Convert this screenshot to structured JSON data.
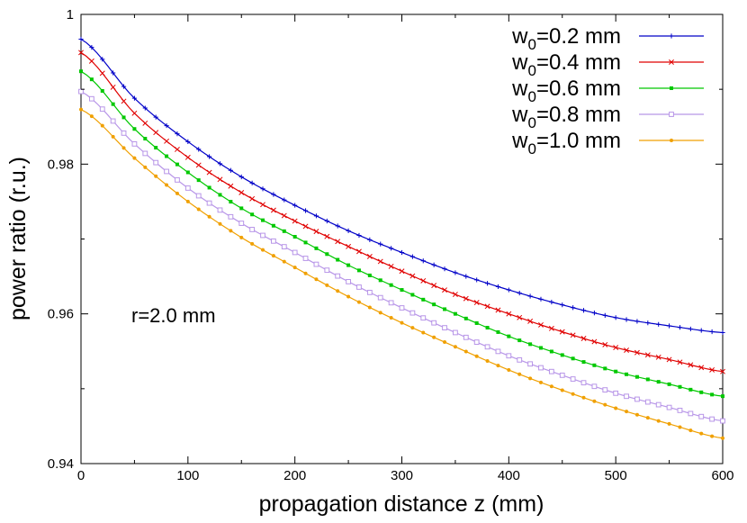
{
  "chart_data": {
    "type": "line",
    "title": "",
    "xlabel": "propagation distance z (mm)",
    "ylabel": "power ratio (r.u.)",
    "xlim": [
      0,
      600
    ],
    "ylim": [
      0.94,
      1.0
    ],
    "xticks": [
      0,
      100,
      200,
      300,
      400,
      500,
      600
    ],
    "xtick_labels": [
      "0",
      "100",
      "200",
      "300",
      "400",
      "500",
      "600"
    ],
    "yticks": [
      0.94,
      0.96,
      0.98,
      1.0
    ],
    "ytick_labels": [
      "0.94",
      "0.96",
      "0.98",
      "1"
    ],
    "grid": false,
    "legend_position": "top-right",
    "annotation": "r=2.0 mm",
    "x": [
      0,
      50,
      100,
      150,
      200,
      250,
      300,
      350,
      400,
      450,
      500,
      550,
      600
    ],
    "series": [
      {
        "name": "w0=0.2 mm",
        "legend_base": "w",
        "legend_sub": "0",
        "legend_rest": "=0.2 mm",
        "color": "#0000c8",
        "marker": "plus",
        "values": [
          0.9967,
          0.9888,
          0.983,
          0.9783,
          0.9745,
          0.9711,
          0.9682,
          0.9655,
          0.9632,
          0.9612,
          0.9595,
          0.9584,
          0.9575
        ]
      },
      {
        "name": "w0=0.4 mm",
        "legend_base": "w",
        "legend_sub": "0",
        "legend_rest": "=0.4 mm",
        "color": "#e00000",
        "marker": "cross",
        "values": [
          0.9949,
          0.9868,
          0.9809,
          0.9762,
          0.9724,
          0.969,
          0.9657,
          0.9626,
          0.96,
          0.9576,
          0.9555,
          0.9539,
          0.9523
        ]
      },
      {
        "name": "w0=0.6 mm",
        "legend_base": "w",
        "legend_sub": "0",
        "legend_rest": "=0.6 mm",
        "color": "#00c800",
        "marker": "square",
        "values": [
          0.9924,
          0.9847,
          0.9789,
          0.9741,
          0.9703,
          0.9665,
          0.9632,
          0.96,
          0.957,
          0.9545,
          0.9523,
          0.9506,
          0.949
        ]
      },
      {
        "name": "w0=0.8 mm",
        "legend_base": "w",
        "legend_sub": "0",
        "legend_rest": "=0.8 mm",
        "color": "#b896e8",
        "marker": "square-open",
        "values": [
          0.9897,
          0.9827,
          0.9768,
          0.9721,
          0.9682,
          0.9643,
          0.9608,
          0.9575,
          0.9544,
          0.9518,
          0.9494,
          0.9475,
          0.9457
        ]
      },
      {
        "name": "w0=1.0 mm",
        "legend_base": "w",
        "legend_sub": "0",
        "legend_rest": "=1.0 mm",
        "color": "#f0a000",
        "marker": "dot",
        "values": [
          0.9873,
          0.9808,
          0.975,
          0.9702,
          0.9662,
          0.9623,
          0.9588,
          0.9556,
          0.9525,
          0.9498,
          0.9474,
          0.9453,
          0.9434
        ]
      }
    ]
  }
}
